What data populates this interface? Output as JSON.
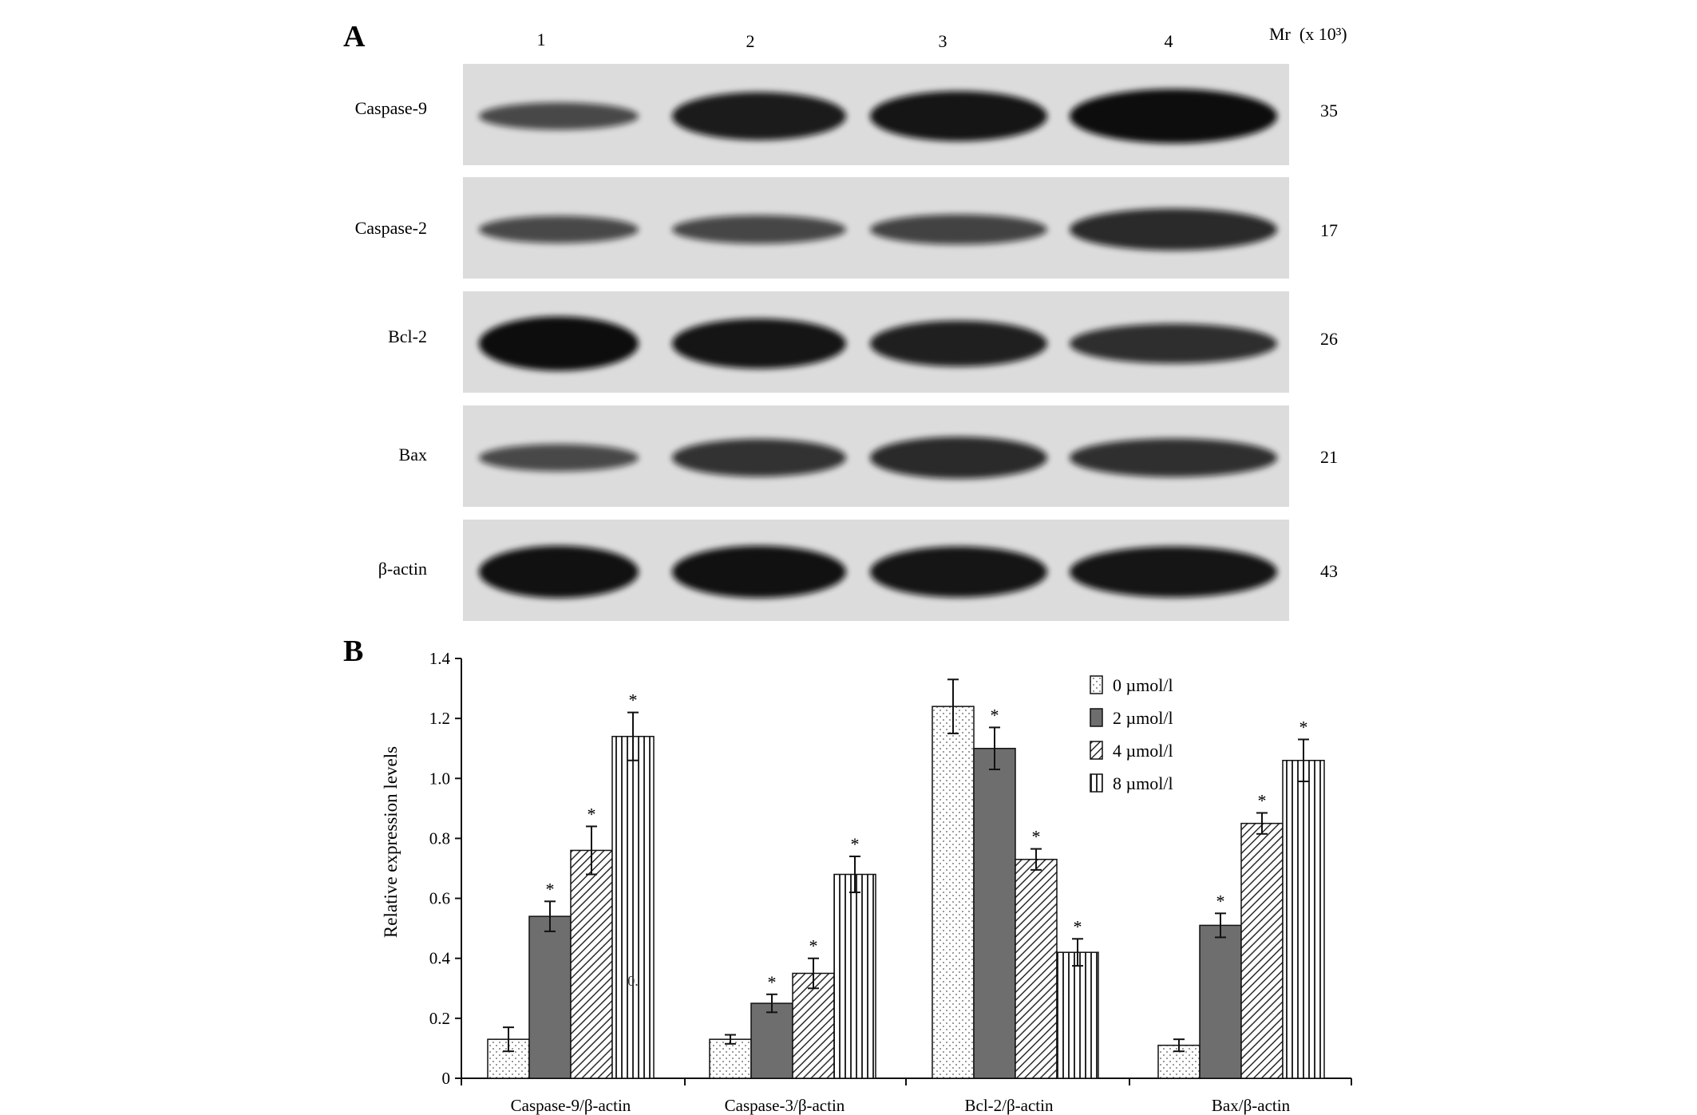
{
  "panel_a": {
    "letter": "A",
    "lane_labels": [
      "1",
      "2",
      "3",
      "4"
    ],
    "mr_header": "Mr  (x 10³)",
    "blots": [
      {
        "protein": "Caspase-9",
        "mr": "35",
        "band_intensity": [
          0.35,
          0.85,
          0.9,
          1.0
        ]
      },
      {
        "protein": "Caspase-2",
        "mr": "17",
        "band_intensity": [
          0.35,
          0.38,
          0.42,
          0.7
        ]
      },
      {
        "protein": "Bcl-2",
        "mr": "26",
        "band_intensity": [
          1.0,
          0.9,
          0.8,
          0.65
        ]
      },
      {
        "protein": "Bax",
        "mr": "21",
        "band_intensity": [
          0.35,
          0.6,
          0.7,
          0.62
        ]
      },
      {
        "protein": "β-actin",
        "mr": "43",
        "band_intensity": [
          0.95,
          0.95,
          0.92,
          0.92
        ]
      }
    ],
    "colors": {
      "blot_background": "#dcdcdc",
      "band": "#0b0b0b"
    }
  },
  "panel_b": {
    "letter": "B"
  },
  "chart_data": {
    "type": "bar",
    "title": "",
    "xlabel": "",
    "ylabel": "Relative expression levels",
    "ylim": [
      0,
      1.4
    ],
    "yticks": [
      "0",
      "0.2",
      "0.4",
      "0.6",
      "0.8",
      "1.0",
      "1.2",
      "1.4"
    ],
    "categories": [
      "Caspase-9/β-actin",
      "Caspase-3/β-actin",
      "Bcl-2/β-actin",
      "Bax/β-actin"
    ],
    "series": [
      {
        "name": "0 µmol/l",
        "pattern": "dots",
        "values": [
          0.13,
          0.13,
          1.24,
          0.11
        ],
        "errors": [
          0.04,
          0.015,
          0.09,
          0.02
        ],
        "significant": [
          false,
          false,
          false,
          false
        ]
      },
      {
        "name": "2 µmol/l",
        "pattern": "solid",
        "values": [
          0.54,
          0.25,
          1.1,
          0.51
        ],
        "errors": [
          0.05,
          0.03,
          0.07,
          0.04
        ],
        "significant": [
          true,
          true,
          true,
          true
        ]
      },
      {
        "name": "4 µmol/l",
        "pattern": "diagonal",
        "values": [
          0.76,
          0.35,
          0.73,
          0.85
        ],
        "errors": [
          0.08,
          0.05,
          0.035,
          0.035
        ],
        "significant": [
          true,
          true,
          true,
          true
        ]
      },
      {
        "name": "8 µmol/l",
        "pattern": "vertical",
        "values": [
          1.14,
          0.68,
          0.42,
          1.06
        ],
        "errors": [
          0.08,
          0.06,
          0.045,
          0.07
        ],
        "significant": [
          true,
          true,
          true,
          true
        ]
      }
    ],
    "significance_marker": "*",
    "stray_label": "0.",
    "legend_position": "top-right",
    "grid": false,
    "colors": {
      "solid_bar": "#6e6e6e",
      "pattern_ink": "#2b2b2b",
      "bar_outline": "#111111"
    }
  }
}
